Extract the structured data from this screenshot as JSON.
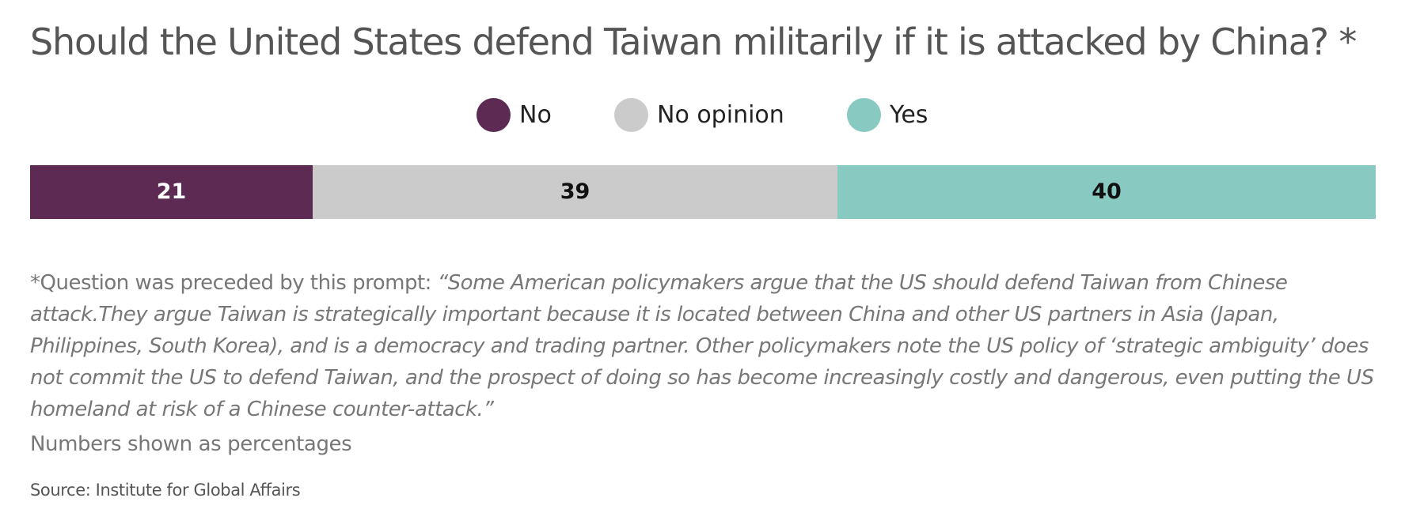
{
  "chart_data": {
    "type": "bar",
    "orientation": "horizontal",
    "stacked": true,
    "title": "Should the United States defend Taiwan militarily if it is attacked by China? *",
    "categories": [
      ""
    ],
    "series": [
      {
        "name": "No",
        "values": [
          21
        ],
        "color": "#5c2a52",
        "label_color": "#ffffff"
      },
      {
        "name": "No opinion",
        "values": [
          39
        ],
        "color": "#cbcbcb",
        "label_color": "#111111"
      },
      {
        "name": "Yes",
        "values": [
          40
        ],
        "color": "#88c9c1",
        "label_color": "#111111"
      }
    ],
    "xlim": [
      0,
      100
    ],
    "legend": "top-center",
    "grid": false,
    "unit": "percent"
  },
  "footnote": {
    "lead": "*Question was preceded by this prompt: ",
    "quote": "“Some American policymakers argue that the US should defend Taiwan from Chinese attack.They argue Taiwan is strategically important because it is located between China and other US partners in Asia (Japan, Philippines, South Korea), and is a democracy and trading partner. Other policymakers note the US policy of ‘strategic ambiguity’ does not commit the US to defend Taiwan, and the prospect of doing so has become increasingly costly and dangerous, even putting the US homeland at risk of a Chinese counter-attack.”"
  },
  "units_note": "Numbers shown as percentages",
  "source": "Source: Institute for Global Affairs"
}
